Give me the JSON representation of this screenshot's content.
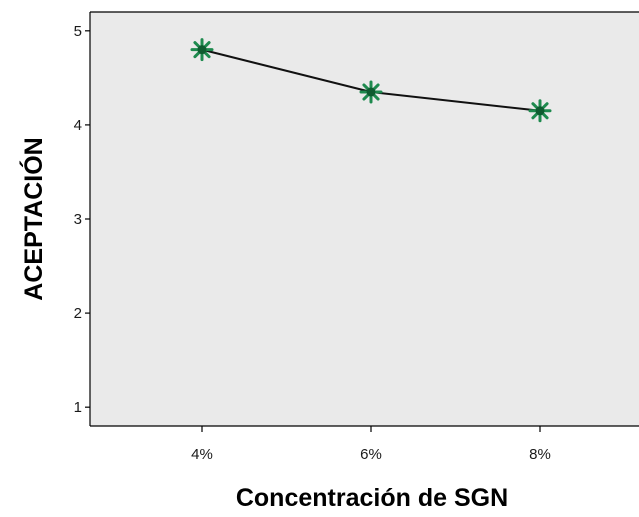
{
  "chart_data": {
    "type": "line",
    "title": "",
    "xlabel": "Concentración de SGN",
    "ylabel": "ACEPTACIÓN",
    "categories": [
      "4%",
      "6%",
      "8%"
    ],
    "values": [
      4.8,
      4.35,
      4.15
    ],
    "ylim": [
      0.8,
      5.2
    ],
    "yticks": [
      1,
      2,
      3,
      4,
      5
    ],
    "grid": false,
    "legend": "none",
    "colors": {
      "plot_background": "#eaeaea",
      "line": "#111111",
      "marker": "#1e8a4e",
      "marker_center": "#0f5c30",
      "axis": "#000000"
    },
    "marker_icon": "star-marker"
  }
}
